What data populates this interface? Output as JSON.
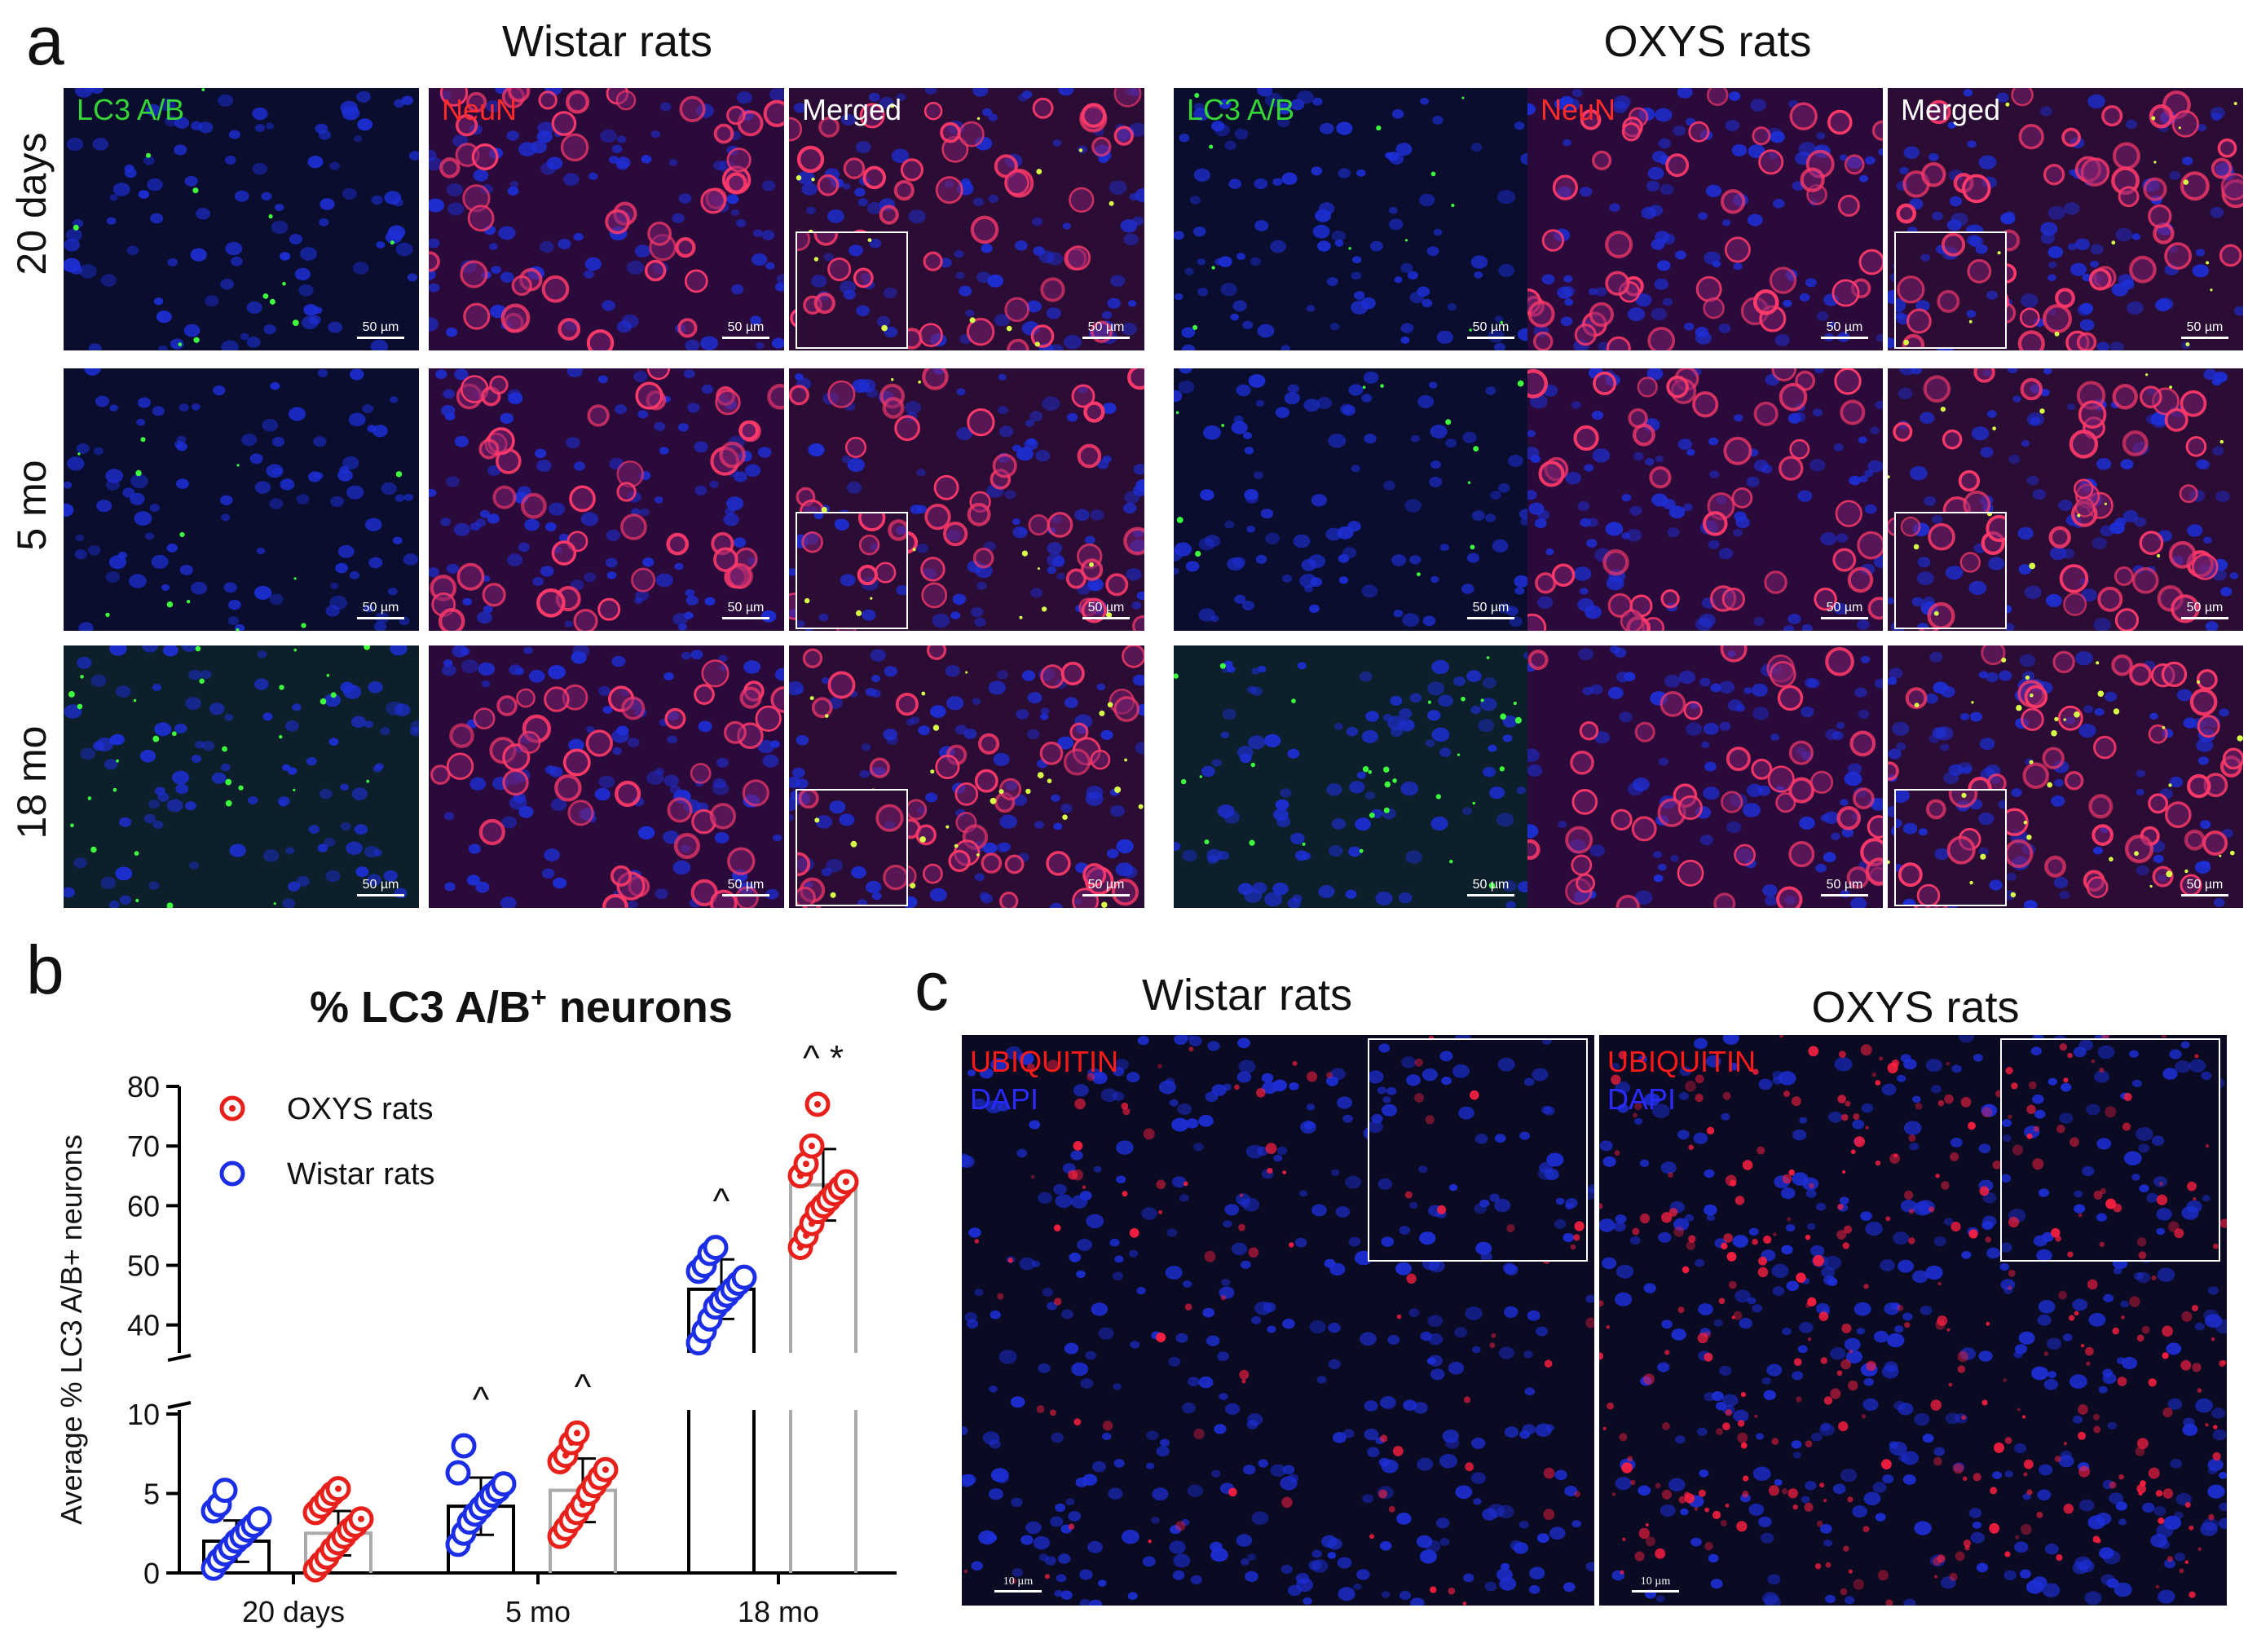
{
  "panel_a": {
    "letter": "a",
    "groups": [
      "Wistar rats",
      "OXYS rats"
    ],
    "rows": [
      "20 days",
      "5 mo",
      "18 mo"
    ],
    "channels": [
      "LC3 A/B",
      "NeuN",
      "Merged"
    ],
    "channel_colors": {
      "LC3 A/B": "#35d635",
      "NeuN": "#ff2a2a",
      "Merged": "#ffffff"
    },
    "scale_bar": "50 µm"
  },
  "panel_b": {
    "letter": "b",
    "title_main": "% LC3 A/B",
    "title_sup": "+",
    "title_end": " neurons",
    "ylabel": "Average % LC3 A/B+ neurons",
    "legend": [
      {
        "label": "OXYS rats",
        "color": "#e8201c"
      },
      {
        "label": "Wistar rats",
        "color": "#1b2ee6"
      }
    ]
  },
  "panel_c": {
    "letter": "c",
    "groups": [
      "Wistar rats",
      "OXYS rats"
    ],
    "labels": [
      "UBIQUITIN",
      "DAPI"
    ],
    "label_colors": [
      "#ff1a1a",
      "#2a2aff"
    ],
    "scale_bar": "10 µm"
  },
  "chart_data": {
    "type": "scatter",
    "title": "% LC3 A/B+ neurons",
    "xlabel": "",
    "ylabel": "Average % LC3 A/B+ neurons",
    "categories": [
      "20 days",
      "5 mo",
      "18 mo"
    ],
    "y_axis_break": [
      10,
      35
    ],
    "y_ticks_lower": [
      0,
      5,
      10
    ],
    "y_ticks_upper": [
      40,
      50,
      60,
      70,
      80
    ],
    "ylim": [
      0,
      80
    ],
    "legend_position": "top-left",
    "series": [
      {
        "name": "Wistar rats",
        "color": "#1b2ee6",
        "marker": "open circle",
        "bar_color": "#000000",
        "means": [
          2.0,
          4.2,
          46.0
        ],
        "sd": [
          1.3,
          1.8,
          5.0
        ],
        "significance": [
          "",
          "^",
          "^"
        ],
        "points": [
          [
            0.3,
            0.8,
            1.2,
            1.6,
            2.0,
            2.3,
            2.7,
            3.0,
            3.4,
            3.9,
            4.3,
            5.2
          ],
          [
            1.8,
            2.5,
            3.2,
            3.7,
            4.1,
            4.5,
            4.9,
            5.2,
            5.6,
            6.3,
            8.0
          ],
          [
            37,
            39,
            41,
            43,
            44,
            45,
            46,
            47,
            48,
            49,
            50,
            52,
            53
          ]
        ]
      },
      {
        "name": "OXYS rats",
        "color": "#e8201c",
        "marker": "circle with dot",
        "bar_color": "#aaaaaa",
        "means": [
          2.5,
          5.2,
          63.5
        ],
        "sd": [
          1.4,
          2.0,
          6.0
        ],
        "significance": [
          "",
          "^",
          "^ *"
        ],
        "points": [
          [
            0.2,
            0.6,
            1.0,
            1.5,
            1.9,
            2.3,
            2.7,
            3.0,
            3.4,
            3.8,
            4.2,
            4.6,
            5.0,
            5.3
          ],
          [
            2.3,
            2.8,
            3.3,
            3.8,
            4.3,
            5.0,
            5.5,
            6.0,
            6.5,
            7.0,
            7.4,
            8.2,
            8.8
          ],
          [
            53,
            55,
            57,
            59,
            60,
            61,
            62,
            63,
            64,
            65,
            67,
            70,
            77
          ]
        ]
      }
    ]
  }
}
